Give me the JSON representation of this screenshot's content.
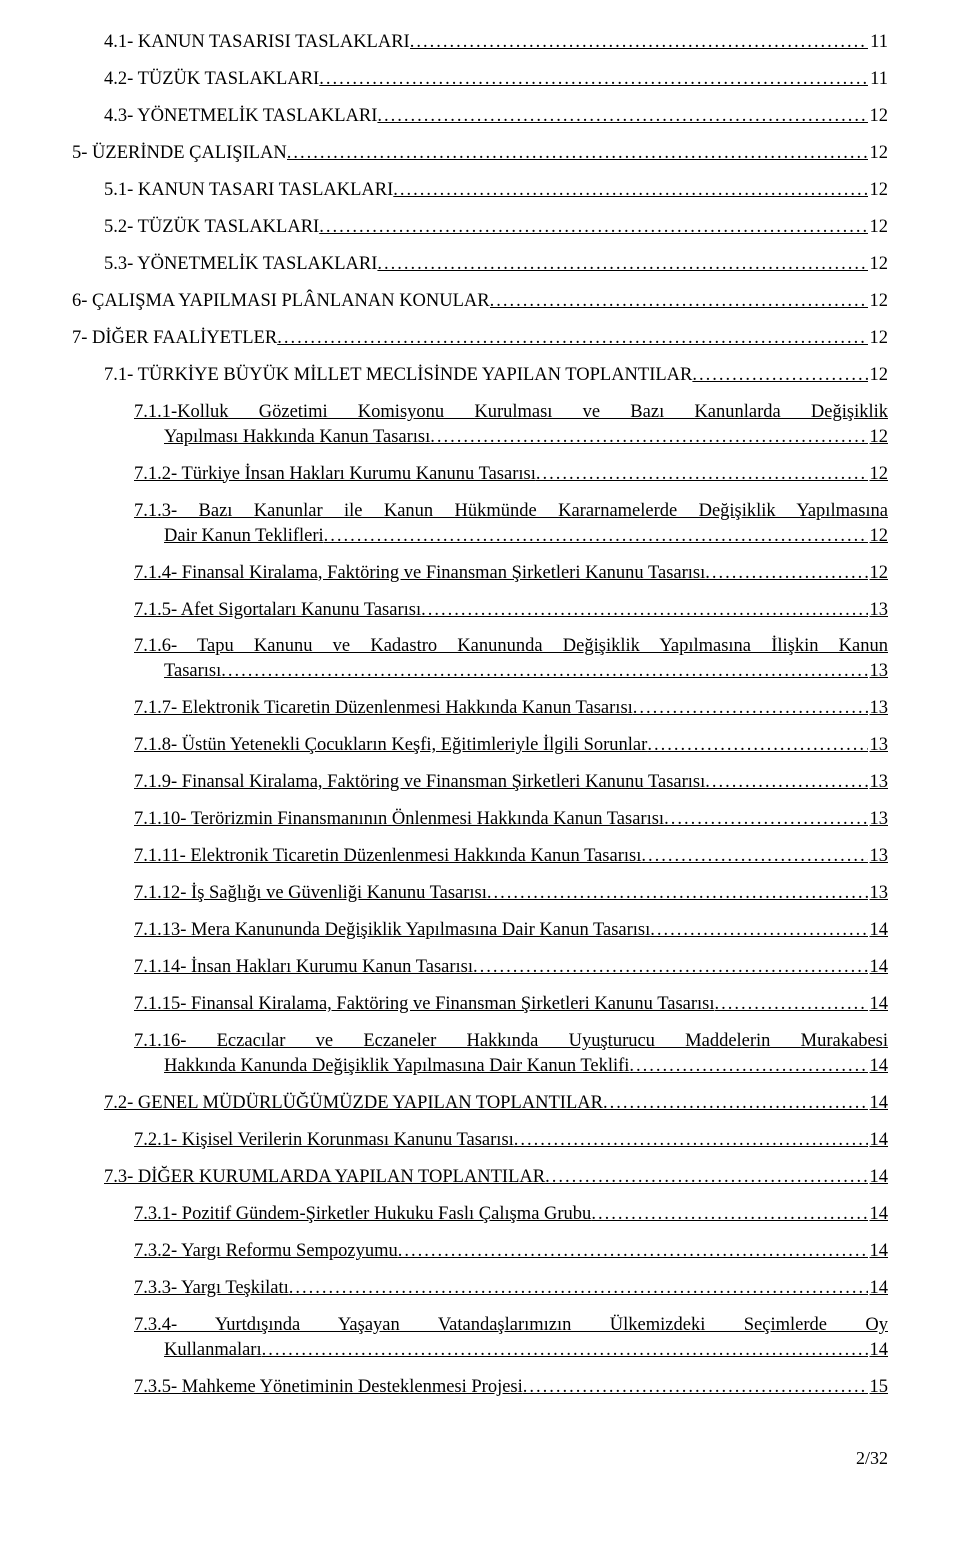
{
  "pageNumber": "2/32",
  "entries": [
    {
      "indent": 1,
      "text": "4.1- KANUN TASARISI TASLAKLARI",
      "page": "11",
      "underline": false
    },
    {
      "indent": 1,
      "text": "4.2- TÜZÜK TASLAKLARI",
      "page": "11",
      "underline": false
    },
    {
      "indent": 1,
      "text": "4.3- YÖNETMELİK TASLAKLARI",
      "page": "12",
      "underline": false
    },
    {
      "indent": 0,
      "text": "5- ÜZERİNDE ÇALIŞILAN",
      "page": "12",
      "underline": false
    },
    {
      "indent": 1,
      "text": "5.1- KANUN TASARI TASLAKLARI",
      "page": "12",
      "underline": false
    },
    {
      "indent": 1,
      "text": "5.2- TÜZÜK TASLAKLARI",
      "page": "12",
      "underline": false
    },
    {
      "indent": 1,
      "text": "5.3- YÖNETMELİK TASLAKLARI",
      "page": "12",
      "underline": false
    },
    {
      "indent": 0,
      "text": "6- ÇALIŞMA YAPILMASI PLÂNLANAN KONULAR",
      "page": "12",
      "underline": false
    },
    {
      "indent": 0,
      "text": "7- DİĞER FAALİYETLER",
      "page": "12",
      "underline": false
    },
    {
      "indent": 1,
      "text": "7.1- TÜRKİYE BÜYÜK MİLLET MECLİSİNDE YAPILAN TOPLANTILAR",
      "page": "12",
      "underline": false
    },
    {
      "indent": 2,
      "multiline": true,
      "line1": "7.1.1-Kolluk Gözetimi Komisyonu Kurulması ve Bazı Kanunlarda Değişiklik",
      "line2": "Yapılması Hakkında Kanun Tasarısı",
      "page": "12",
      "line2indent": true
    },
    {
      "indent": 2,
      "text": "7.1.2- Türkiye İnsan Hakları Kurumu Kanunu Tasarısı",
      "page": "12"
    },
    {
      "indent": 2,
      "multiline": true,
      "line1": "7.1.3- Bazı Kanunlar ile Kanun Hükmünde Kararnamelerde Değişiklik Yapılmasına",
      "line2": "Dair Kanun Teklifleri",
      "page": "12",
      "line2indent": true
    },
    {
      "indent": 2,
      "text": "7.1.4- Finansal Kiralama, Faktöring ve Finansman Şirketleri Kanunu Tasarısı",
      "page": "12"
    },
    {
      "indent": 2,
      "text": "7.1.5- Afet Sigortaları Kanunu Tasarısı",
      "page": "13"
    },
    {
      "indent": 2,
      "multiline": true,
      "line1": "7.1.6- Tapu Kanunu ve Kadastro Kanununda Değişiklik Yapılmasına İlişkin Kanun",
      "line2": "Tasarısı",
      "page": "13",
      "line2indent": true
    },
    {
      "indent": 2,
      "text": "7.1.7- Elektronik Ticaretin Düzenlenmesi Hakkında Kanun Tasarısı",
      "page": "13"
    },
    {
      "indent": 2,
      "text": "7.1.8- Üstün Yetenekli Çocukların Keşfi, Eğitimleriyle İlgili Sorunlar",
      "page": "13"
    },
    {
      "indent": 2,
      "text": "7.1.9- Finansal Kiralama, Faktöring ve Finansman Şirketleri Kanunu Tasarısı",
      "page": "13"
    },
    {
      "indent": 2,
      "text": "7.1.10- Terörizmin Finansmanının Önlenmesi Hakkında Kanun Tasarısı",
      "page": "13"
    },
    {
      "indent": 2,
      "text": "7.1.11- Elektronik Ticaretin Düzenlenmesi Hakkında Kanun Tasarısı",
      "page": "13"
    },
    {
      "indent": 2,
      "text": "7.1.12- İş Sağlığı ve Güvenliği Kanunu Tasarısı",
      "page": "13"
    },
    {
      "indent": 2,
      "text": "7.1.13- Mera Kanununda Değişiklik Yapılmasına Dair Kanun Tasarısı",
      "page": "14"
    },
    {
      "indent": 2,
      "text": "7.1.14- İnsan Hakları Kurumu Kanun Tasarısı",
      "page": "14"
    },
    {
      "indent": 2,
      "text": "7.1.15- Finansal Kiralama, Faktöring ve Finansman Şirketleri Kanunu Tasarısı",
      "page": "14"
    },
    {
      "indent": 2,
      "multiline": true,
      "line1": "7.1.16- Eczacılar ve Eczaneler Hakkında Uyuşturucu Maddelerin Murakabesi",
      "line2": "Hakkında Kanunda Değişiklik Yapılmasına Dair Kanun Teklifi",
      "page": "14",
      "line2indent": true
    },
    {
      "indent": 1,
      "text": "7.2- GENEL MÜDÜRLÜĞÜMÜZDE YAPILAN TOPLANTILAR",
      "page": "14"
    },
    {
      "indent": 2,
      "text": "7.2.1- Kişisel Verilerin Korunması Kanunu Tasarısı",
      "page": "14"
    },
    {
      "indent": 1,
      "text": "7.3- DİĞER KURUMLARDA YAPILAN TOPLANTILAR",
      "page": "14"
    },
    {
      "indent": 2,
      "text": "7.3.1- Pozitif Gündem-Şirketler Hukuku Faslı Çalışma Grubu",
      "page": "14"
    },
    {
      "indent": 2,
      "text": "7.3.2- Yargı Reformu Sempozyumu",
      "page": "14"
    },
    {
      "indent": 2,
      "text": "7.3.3- Yargı Teşkilatı",
      "page": "14"
    },
    {
      "indent": 2,
      "multiline": true,
      "line1": "7.3.4- Yurtdışında Yaşayan Vatandaşlarımızın Ülkemizdeki Seçimlerde Oy",
      "line2": "Kullanmaları",
      "page": "14",
      "line2indent": true
    },
    {
      "indent": 2,
      "text": "7.3.5- Mahkeme Yönetiminin Desteklenmesi Projesi",
      "page": "15"
    }
  ]
}
